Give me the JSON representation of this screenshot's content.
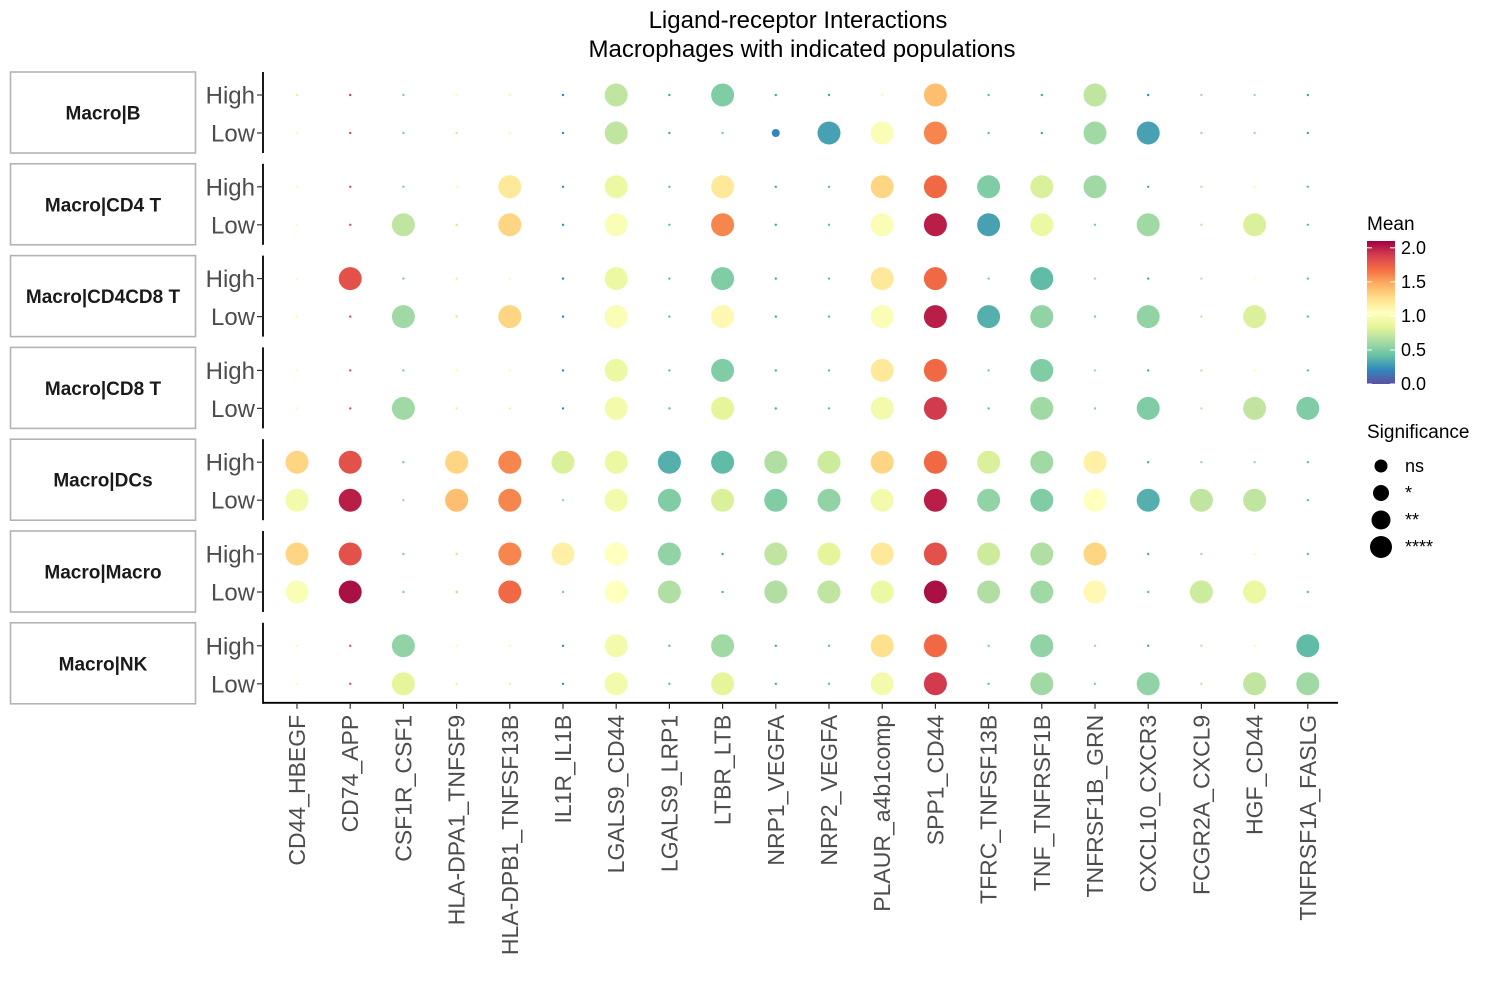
{
  "chart_data": {
    "type": "dotplot",
    "title": "Ligand-receptor Interactions",
    "subtitle": "Macrophages with indicated populations",
    "x_categories": [
      "CD44_HBEGF",
      "CD74_APP",
      "CSF1R_CSF1",
      "HLA-DPA1_TNFSF9",
      "HLA-DPB1_TNFSF13B",
      "IL1R_IL1B",
      "LGALS9_CD44",
      "LGALS9_LRP1",
      "LTBR_LTB",
      "NRP1_VEGFA",
      "NRP2_VEGFA",
      "PLAUR_a4b1comp",
      "SPP1_CD44",
      "TFRC_TNFSF13B",
      "TNF_TNFRSF1B",
      "TNFRSF1B_GRN",
      "CXCL10_CXCR3",
      "FCGR2A_CXCL9",
      "HGF_CD44",
      "TNFRSF1A_FASLG"
    ],
    "panels": [
      "Macro|B",
      "Macro|CD4 T",
      "Macro|CD4CD8 T",
      "Macro|CD8 T",
      "Macro|DCs",
      "Macro|Macro",
      "Macro|NK"
    ],
    "rows": [
      "High",
      "Low"
    ],
    "color_legend": {
      "title": "Mean",
      "range": [
        0.0,
        2.1
      ],
      "ticks": [
        "2.0",
        "1.5",
        "1.0",
        "0.5",
        "0.0"
      ],
      "tick_values": [
        2.0,
        1.5,
        1.0,
        0.5,
        0.0
      ],
      "palette": "Spectral"
    },
    "size_legend": {
      "title": "Significance",
      "levels": [
        "ns",
        "*",
        "**",
        "****"
      ]
    },
    "significance_codes": "0 = not shown (tiny dot), 1 = ns, 2 = *, 3 = **, 4 = ****",
    "series": [
      {
        "panel": "Macro|B",
        "row": "High",
        "mean": [
          1.2,
          1.9,
          0.5,
          1.1,
          1.1,
          0.2,
          0.7,
          0.3,
          0.5,
          0.3,
          0.3,
          1.1,
          1.4,
          0.4,
          0.3,
          0.7,
          0.2,
          0.6,
          0.6,
          0.3
        ],
        "sig": [
          0,
          0,
          0,
          0,
          0,
          0,
          4,
          0,
          4,
          0,
          0,
          0,
          4,
          0,
          0,
          4,
          0,
          0,
          0,
          0
        ]
      },
      {
        "panel": "Macro|B",
        "row": "Low",
        "mean": [
          1.1,
          1.8,
          0.5,
          1.3,
          1.1,
          0.2,
          0.7,
          0.3,
          0.5,
          0.2,
          0.3,
          1.0,
          1.6,
          0.4,
          0.3,
          0.6,
          0.3,
          0.6,
          0.6,
          0.3
        ],
        "sig": [
          0,
          0,
          0,
          0,
          0,
          0,
          4,
          0,
          0,
          1,
          4,
          4,
          4,
          0,
          0,
          4,
          4,
          0,
          0,
          0
        ]
      },
      {
        "panel": "Macro|CD4 T",
        "row": "High",
        "mean": [
          1.1,
          1.8,
          0.5,
          1.1,
          1.2,
          0.2,
          0.9,
          0.4,
          1.2,
          0.3,
          0.4,
          1.3,
          1.7,
          0.5,
          0.8,
          0.6,
          0.3,
          0.7,
          1.1,
          0.4
        ],
        "sig": [
          0,
          0,
          0,
          0,
          4,
          0,
          4,
          0,
          4,
          0,
          0,
          4,
          4,
          4,
          4,
          4,
          0,
          0,
          0,
          0
        ]
      },
      {
        "panel": "Macro|CD4 T",
        "row": "Low",
        "mean": [
          1.1,
          1.8,
          0.7,
          1.3,
          1.3,
          0.2,
          1.0,
          0.4,
          1.6,
          0.3,
          0.4,
          1.0,
          2.0,
          0.3,
          0.9,
          0.5,
          0.6,
          0.7,
          0.8,
          0.4
        ],
        "sig": [
          0,
          0,
          4,
          0,
          4,
          0,
          4,
          0,
          4,
          0,
          0,
          4,
          4,
          4,
          4,
          0,
          4,
          0,
          4,
          0
        ]
      },
      {
        "panel": "Macro|CD4CD8 T",
        "row": "High",
        "mean": [
          1.1,
          1.8,
          0.5,
          1.2,
          1.1,
          0.2,
          0.9,
          0.4,
          0.5,
          0.3,
          0.4,
          1.2,
          1.7,
          0.5,
          0.4,
          0.6,
          0.3,
          0.7,
          1.1,
          0.4
        ],
        "sig": [
          0,
          4,
          0,
          0,
          0,
          0,
          4,
          0,
          4,
          0,
          0,
          4,
          4,
          0,
          4,
          0,
          0,
          0,
          0,
          0
        ]
      },
      {
        "panel": "Macro|CD4CD8 T",
        "row": "Low",
        "mean": [
          1.1,
          1.8,
          0.6,
          1.3,
          1.3,
          0.2,
          1.0,
          0.4,
          1.1,
          0.3,
          0.4,
          1.0,
          2.0,
          0.35,
          0.55,
          0.5,
          0.55,
          0.7,
          0.8,
          0.4
        ],
        "sig": [
          0,
          0,
          4,
          0,
          4,
          0,
          4,
          0,
          4,
          0,
          0,
          4,
          4,
          4,
          4,
          0,
          4,
          0,
          4,
          0
        ]
      },
      {
        "panel": "Macro|CD8 T",
        "row": "High",
        "mean": [
          1.1,
          1.8,
          0.5,
          1.1,
          1.1,
          0.2,
          0.9,
          0.4,
          0.5,
          0.3,
          0.4,
          1.2,
          1.7,
          0.5,
          0.5,
          0.6,
          0.3,
          0.7,
          1.1,
          0.4
        ],
        "sig": [
          0,
          0,
          0,
          0,
          0,
          0,
          4,
          0,
          4,
          0,
          0,
          4,
          4,
          0,
          4,
          0,
          0,
          0,
          0,
          0
        ]
      },
      {
        "panel": "Macro|CD8 T",
        "row": "Low",
        "mean": [
          1.1,
          1.8,
          0.6,
          1.2,
          1.2,
          0.2,
          0.95,
          0.4,
          0.85,
          0.3,
          0.4,
          0.95,
          1.9,
          0.4,
          0.6,
          0.5,
          0.5,
          0.7,
          0.7,
          0.5
        ],
        "sig": [
          0,
          0,
          4,
          0,
          0,
          0,
          4,
          0,
          4,
          0,
          0,
          4,
          4,
          0,
          4,
          0,
          4,
          0,
          4,
          4
        ]
      },
      {
        "panel": "Macro|DCs",
        "row": "High",
        "mean": [
          1.3,
          1.8,
          0.5,
          1.3,
          1.6,
          0.8,
          0.9,
          0.35,
          0.4,
          0.65,
          0.75,
          1.3,
          1.7,
          0.8,
          0.6,
          1.15,
          0.3,
          0.6,
          0.6,
          0.4
        ],
        "sig": [
          4,
          4,
          0,
          4,
          4,
          4,
          4,
          4,
          4,
          4,
          4,
          4,
          4,
          4,
          4,
          4,
          0,
          0,
          0,
          0
        ]
      },
      {
        "panel": "Macro|DCs",
        "row": "Low",
        "mean": [
          0.95,
          2.0,
          0.6,
          1.4,
          1.6,
          0.55,
          0.95,
          0.5,
          0.8,
          0.5,
          0.55,
          0.95,
          2.0,
          0.55,
          0.5,
          1.05,
          0.35,
          0.7,
          0.7,
          0.4
        ],
        "sig": [
          4,
          4,
          0,
          4,
          4,
          0,
          4,
          4,
          4,
          4,
          4,
          4,
          4,
          4,
          4,
          4,
          4,
          4,
          4,
          0
        ]
      },
      {
        "panel": "Macro|Macro",
        "row": "High",
        "mean": [
          1.3,
          1.8,
          0.5,
          1.3,
          1.6,
          1.15,
          1.05,
          0.55,
          0.3,
          0.7,
          0.85,
          1.2,
          1.8,
          0.75,
          0.65,
          1.3,
          0.3,
          0.6,
          1.1,
          0.4
        ],
        "sig": [
          4,
          4,
          0,
          0,
          4,
          4,
          4,
          4,
          0,
          4,
          4,
          4,
          4,
          4,
          4,
          4,
          0,
          0,
          0,
          0
        ]
      },
      {
        "panel": "Macro|Macro",
        "row": "Low",
        "mean": [
          1.0,
          2.05,
          0.5,
          1.4,
          1.7,
          0.5,
          1.05,
          0.65,
          0.35,
          0.65,
          0.7,
          0.9,
          2.05,
          0.65,
          0.6,
          1.1,
          0.4,
          0.75,
          0.9,
          0.4
        ],
        "sig": [
          4,
          4,
          0,
          0,
          4,
          0,
          4,
          4,
          0,
          4,
          4,
          4,
          4,
          4,
          4,
          4,
          0,
          4,
          4,
          0
        ]
      },
      {
        "panel": "Macro|NK",
        "row": "High",
        "mean": [
          1.1,
          1.8,
          0.55,
          1.1,
          1.1,
          0.2,
          0.95,
          0.4,
          0.6,
          0.3,
          0.4,
          1.25,
          1.7,
          0.5,
          0.55,
          0.6,
          0.3,
          0.7,
          1.1,
          0.4
        ],
        "sig": [
          0,
          0,
          4,
          0,
          0,
          0,
          4,
          0,
          4,
          0,
          0,
          4,
          4,
          0,
          4,
          0,
          0,
          0,
          0,
          4
        ]
      },
      {
        "panel": "Macro|NK",
        "row": "Low",
        "mean": [
          1.1,
          1.8,
          0.85,
          1.2,
          1.2,
          0.2,
          0.95,
          0.4,
          0.85,
          0.3,
          0.4,
          0.95,
          1.9,
          0.4,
          0.6,
          0.5,
          0.55,
          0.7,
          0.7,
          0.6
        ],
        "sig": [
          0,
          0,
          4,
          0,
          0,
          0,
          4,
          0,
          4,
          0,
          0,
          4,
          4,
          0,
          4,
          0,
          4,
          0,
          4,
          4
        ]
      }
    ]
  }
}
